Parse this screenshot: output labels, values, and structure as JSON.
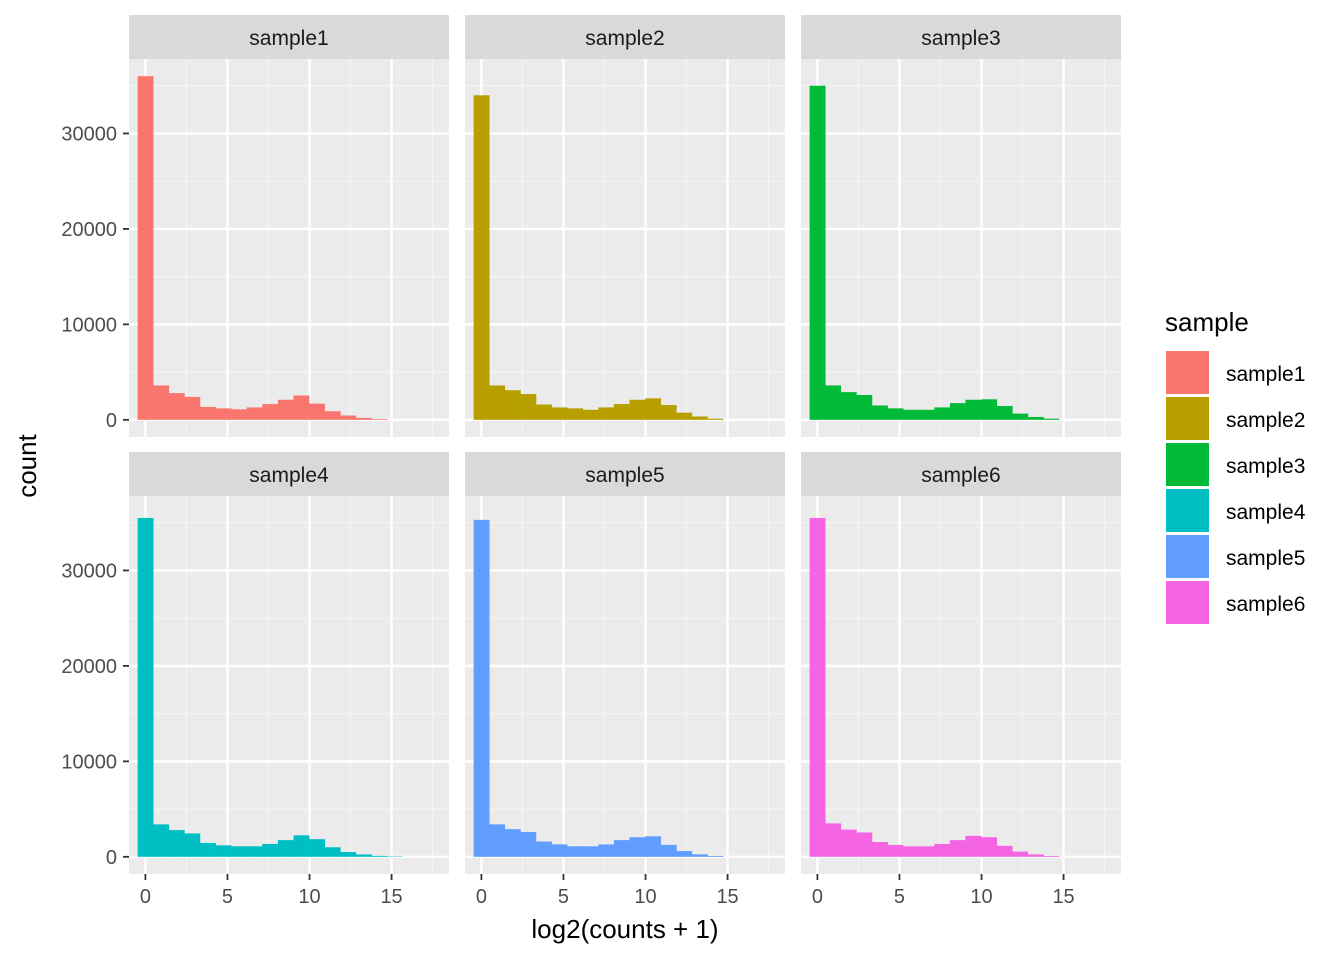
{
  "chart_data": {
    "type": "bar",
    "subtype": "faceted histogram",
    "xlabel": "log2(counts + 1)",
    "ylabel": "count",
    "xlim": [
      -1,
      18.5
    ],
    "ylim": [
      -1800,
      37800
    ],
    "x_ticks": [
      0,
      5,
      10,
      15
    ],
    "y_ticks": [
      0,
      10000,
      20000,
      30000
    ],
    "x_tick_labels": [
      "0",
      "5",
      "10",
      "15"
    ],
    "y_tick_labels": [
      "0",
      "10000",
      "20000",
      "30000"
    ],
    "bin_width": 0.95,
    "bin_start": -0.475,
    "legend": {
      "title": "sample",
      "position": "right",
      "entries": [
        "sample1",
        "sample2",
        "sample3",
        "sample4",
        "sample5",
        "sample6"
      ]
    },
    "grid": true,
    "panel_background": "#ebebeb",
    "strip_background": "#d9d9d9",
    "colors": [
      "#f8766d",
      "#b79f00",
      "#00ba38",
      "#00bfc4",
      "#619cff",
      "#f564e3"
    ],
    "series": [
      {
        "name": "sample1",
        "values": [
          36000,
          3600,
          2800,
          2400,
          1350,
          1200,
          1100,
          1300,
          1650,
          2100,
          2550,
          1700,
          900,
          450,
          200,
          80
        ]
      },
      {
        "name": "sample2",
        "values": [
          34000,
          3600,
          3100,
          2700,
          1600,
          1300,
          1200,
          1050,
          1300,
          1650,
          2100,
          2250,
          1550,
          750,
          350,
          120
        ]
      },
      {
        "name": "sample3",
        "values": [
          35000,
          3600,
          2900,
          2600,
          1500,
          1200,
          1050,
          1050,
          1300,
          1750,
          2100,
          2150,
          1450,
          650,
          300,
          120
        ]
      },
      {
        "name": "sample4",
        "values": [
          35500,
          3400,
          2800,
          2450,
          1450,
          1200,
          1100,
          1100,
          1350,
          1750,
          2250,
          1850,
          1000,
          500,
          250,
          100,
          40
        ]
      },
      {
        "name": "sample5",
        "values": [
          35300,
          3400,
          2900,
          2600,
          1600,
          1300,
          1100,
          1100,
          1300,
          1750,
          2050,
          2150,
          1250,
          600,
          260,
          90
        ]
      },
      {
        "name": "sample6",
        "values": [
          35500,
          3500,
          2850,
          2550,
          1550,
          1250,
          1100,
          1100,
          1350,
          1750,
          2200,
          2050,
          1150,
          550,
          250,
          90
        ]
      }
    ]
  }
}
